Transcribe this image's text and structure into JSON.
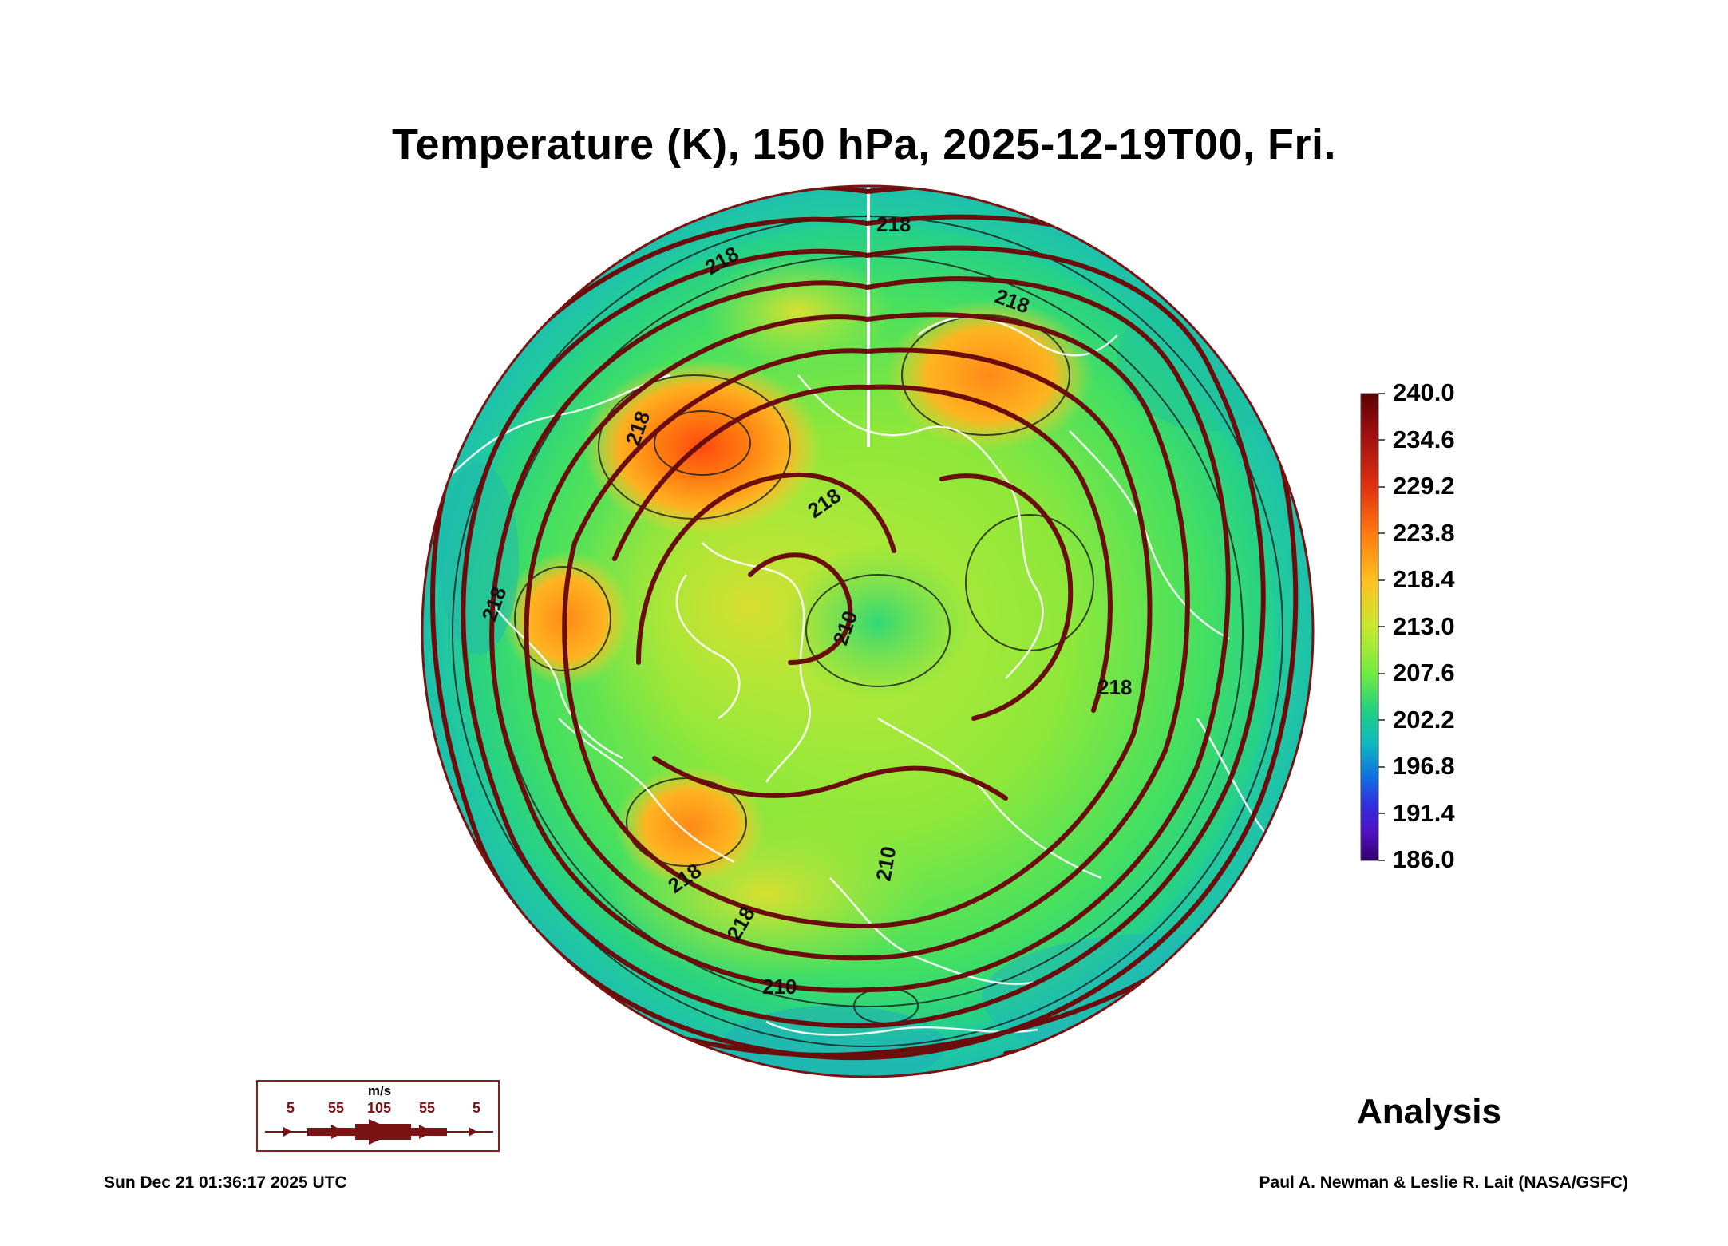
{
  "title": "Temperature (K), 150 hPa, 2025-12-19T00, Fri.",
  "colorbar": {
    "labels": [
      "240.0",
      "234.6",
      "229.2",
      "223.8",
      "218.4",
      "213.0",
      "207.6",
      "202.2",
      "196.8",
      "191.4",
      "186.0"
    ],
    "colors_top_to_bottom": [
      "#5c0000",
      "#a01010",
      "#e03010",
      "#ff7a10",
      "#ffc020",
      "#c8e830",
      "#70ec40",
      "#20d080",
      "#10b8c0",
      "#1070e0",
      "#3030e0",
      "#5010c0",
      "#30006a"
    ]
  },
  "contour_labels": [
    "218",
    "218",
    "218",
    "218",
    "218",
    "210",
    "218",
    "218",
    "218",
    "210",
    "210",
    "218"
  ],
  "wind_legend": {
    "unit": "m/s",
    "values": [
      "5",
      "55",
      "105",
      "55",
      "5"
    ]
  },
  "analysis_label": "Analysis",
  "footer": {
    "timestamp": "Sun Dec 21 01:36:17 2025 UTC",
    "credit": "Paul A. Newman & Leslie R. Lait (NASA/GSFC)"
  },
  "colors": {
    "streamline": "#6b0d0d",
    "coastline": "#ffffff",
    "contour": "#1a1a1a"
  }
}
